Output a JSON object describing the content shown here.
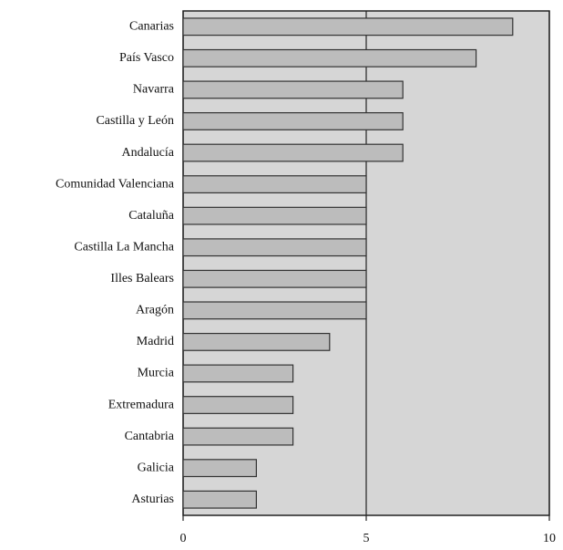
{
  "chart_data": {
    "type": "barh",
    "categories": [
      "Canarias",
      "País Vasco",
      "Navarra",
      "Castilla y León",
      "Andalucía",
      "Comunidad Valenciana",
      "Cataluña",
      "Castilla La Mancha",
      "Illes Balears",
      "Aragón",
      "Madrid",
      "Murcia",
      "Extremadura",
      "Cantabria",
      "Galicia",
      "Asturias"
    ],
    "values": [
      9,
      8,
      6,
      6,
      6,
      5,
      5,
      5,
      5,
      5,
      4,
      3,
      3,
      3,
      2,
      2
    ],
    "color": "#bcbcbc",
    "xlim": [
      0,
      10
    ],
    "xticks": [
      0,
      5,
      10
    ],
    "grid": true
  }
}
